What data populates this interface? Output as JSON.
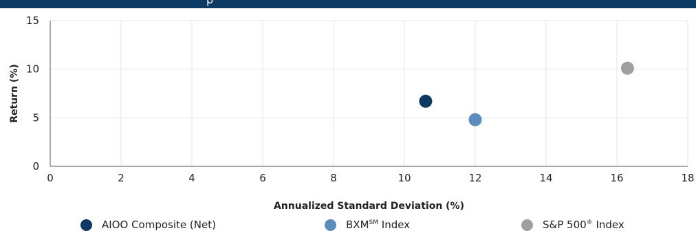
{
  "header": {
    "title_fragment": "p"
  },
  "chart_data": {
    "type": "scatter",
    "title": "",
    "xlabel": "Annualized Standard Deviation (%)",
    "ylabel": "Return (%)",
    "xlim": [
      0,
      18
    ],
    "ylim": [
      0,
      15
    ],
    "xticks": [
      "0",
      "2",
      "4",
      "6",
      "8",
      "10",
      "12",
      "14",
      "16",
      "18"
    ],
    "yticks": [
      "0",
      "5",
      "10",
      "15"
    ],
    "grid": true,
    "legend_position": "bottom",
    "series": [
      {
        "name": "AIOO Composite (Net)",
        "color": "#0d3a63",
        "points": [
          {
            "x": 10.6,
            "y": 6.7
          }
        ]
      },
      {
        "name_base": "BXM",
        "name_sup": "SM",
        "name_rest": " Index",
        "color": "#5b8cbe",
        "points": [
          {
            "x": 12.0,
            "y": 4.8
          }
        ]
      },
      {
        "name_base": "S&P 500",
        "name_sup": "®",
        "name_rest": " Index",
        "color": "#9e9fa1",
        "points": [
          {
            "x": 16.3,
            "y": 10.1
          }
        ]
      }
    ]
  }
}
